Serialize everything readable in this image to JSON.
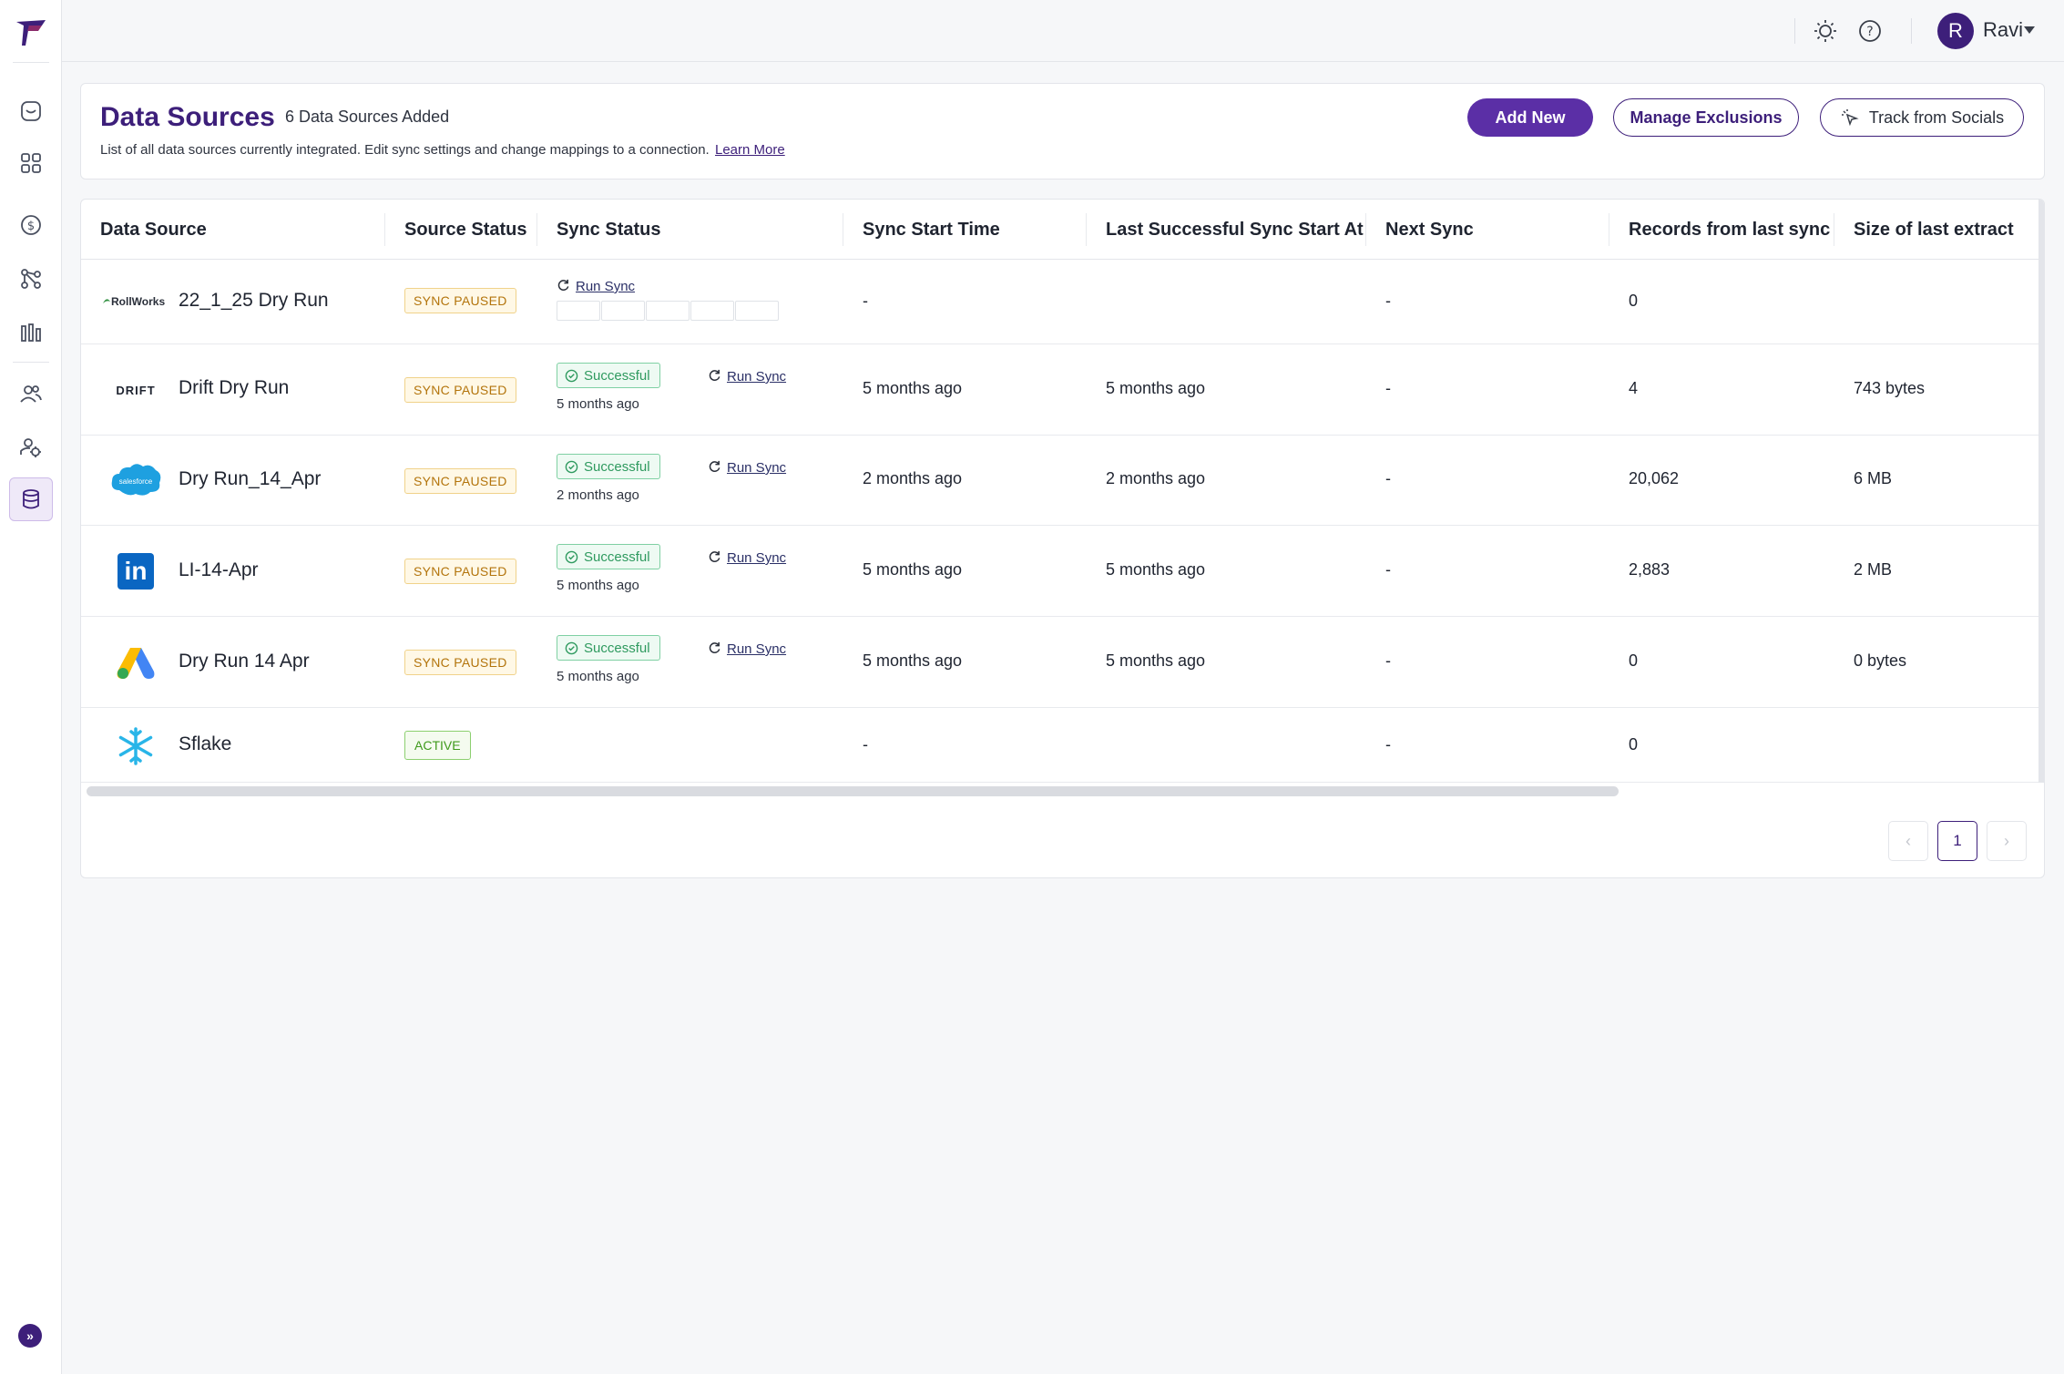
{
  "user": {
    "initial": "R",
    "name": "Ravi"
  },
  "header": {
    "title": "Data Sources",
    "count": "6 Data Sources Added",
    "description": "List of all data sources currently integrated. Edit sync settings and change mappings to a connection.",
    "learn_more": "Learn More",
    "add_new": "Add New",
    "manage_exclusions": "Manage Exclusions",
    "track_socials": "Track from Socials"
  },
  "table": {
    "columns": [
      "Data Source",
      "Source Status",
      "Sync Status",
      "Sync Start Time",
      "Last Successful Sync Start At",
      "Next Sync",
      "Records from last sync",
      "Size of last extract"
    ],
    "rows": [
      {
        "logo": "rollworks-logo",
        "logo_text": "RollWorks",
        "name": "22_1_25 Dry Run",
        "status": "SYNC PAUSED",
        "sync_badge": "",
        "sync_time": "",
        "run_sync": "Run Sync",
        "start": "-",
        "last": "",
        "next": "-",
        "records": "0",
        "size": ""
      },
      {
        "logo": "drift-logo",
        "logo_text": "DRIFT",
        "name": "Drift Dry Run",
        "status": "SYNC PAUSED",
        "sync_badge": "Successful",
        "sync_time": "5 months ago",
        "run_sync": "Run Sync",
        "start": "5 months ago",
        "last": "5 months ago",
        "next": "-",
        "records": "4",
        "size": "743 bytes"
      },
      {
        "logo": "salesforce-logo",
        "logo_text": "salesforce",
        "name": "Dry Run_14_Apr",
        "status": "SYNC PAUSED",
        "sync_badge": "Successful",
        "sync_time": "2 months ago",
        "run_sync": "Run Sync",
        "start": "2 months ago",
        "last": "2 months ago",
        "next": "-",
        "records": "20,062",
        "size": "6 MB"
      },
      {
        "logo": "linkedin-logo",
        "logo_text": "in",
        "name": "LI-14-Apr",
        "status": "SYNC PAUSED",
        "sync_badge": "Successful",
        "sync_time": "5 months ago",
        "run_sync": "Run Sync",
        "start": "5 months ago",
        "last": "5 months ago",
        "next": "-",
        "records": "2,883",
        "size": "2 MB"
      },
      {
        "logo": "google-ads-logo",
        "logo_text": "",
        "name": "Dry Run 14 Apr",
        "status": "SYNC PAUSED",
        "sync_badge": "Successful",
        "sync_time": "5 months ago",
        "run_sync": "Run Sync",
        "start": "5 months ago",
        "last": "5 months ago",
        "next": "-",
        "records": "0",
        "size": "0 bytes"
      },
      {
        "logo": "snowflake-logo",
        "logo_text": "",
        "name": "Sflake",
        "status": "ACTIVE",
        "sync_badge": "",
        "sync_time": "",
        "run_sync": "",
        "start": "-",
        "last": "",
        "next": "-",
        "records": "0",
        "size": ""
      }
    ]
  },
  "pagination": {
    "current": "1",
    "prev": "‹",
    "next": "›"
  },
  "icons": {
    "nav": [
      "inbox-icon",
      "grid-icon",
      "dollar-icon",
      "workflow-icon",
      "bar-chart-icon",
      "users-icon",
      "settings-users-icon",
      "database-icon"
    ],
    "top": [
      "sun-icon",
      "help-icon"
    ],
    "expand": "»"
  },
  "colors": {
    "brand": "#3d1f7a",
    "primary_button": "#5b2fa6",
    "success": "#2f9a5f",
    "paused": "#b3740c",
    "active": "#3f9a1c"
  }
}
